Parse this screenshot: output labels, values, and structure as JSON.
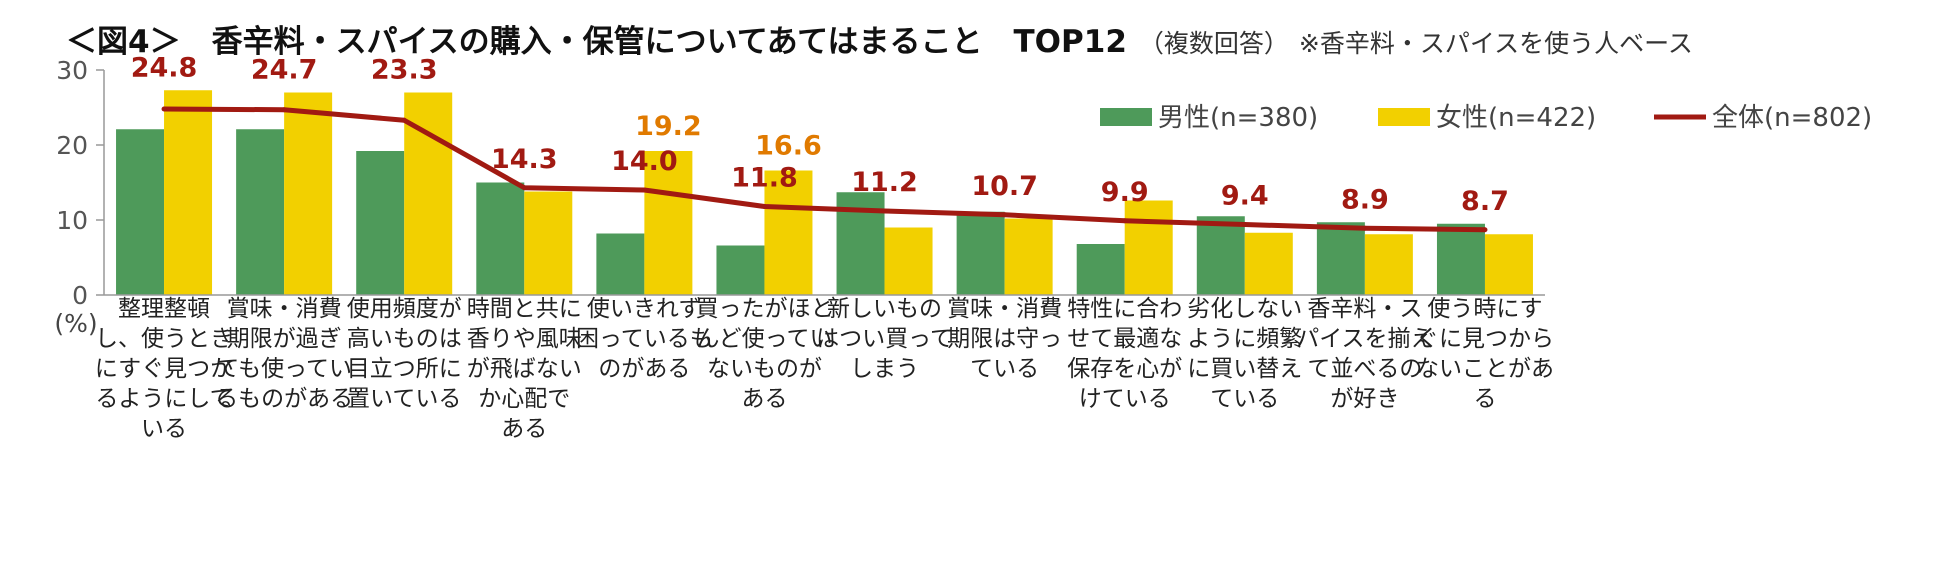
{
  "title": {
    "main": "＜図4＞　香辛料・スパイスの購入・保管についてあてはまること　TOP12",
    "sub1": "（複数回答）",
    "sub2": "※香辛料・スパイスを使う人ベース"
  },
  "chart_data": {
    "type": "bar",
    "title": "香辛料・スパイスの購入・保管についてあてはまること TOP12",
    "ylabel": "(%)",
    "ylim": [
      0,
      30
    ],
    "yticks": [
      0,
      10,
      20,
      30
    ],
    "legend_position": "top-right",
    "categories": [
      [
        "整理整頓",
        "し、使うとき",
        "にすぐ見つか",
        "るようにして",
        "いる"
      ],
      [
        "賞味・消費",
        "期限が過ぎ",
        "ても使ってい",
        "るものがある"
      ],
      [
        "使用頻度が",
        "高いものは",
        "目立つ所に",
        "置いている"
      ],
      [
        "時間と共に",
        "香りや風味",
        "が飛ばない",
        "か心配で",
        "ある"
      ],
      [
        "使いきれず",
        "困っているも",
        "のがある"
      ],
      [
        "買ったがほと",
        "んど使ってい",
        "ないものが",
        "ある"
      ],
      [
        "新しいもの",
        "はつい買って",
        "しまう"
      ],
      [
        "賞味・消費",
        "期限は守っ",
        "ている"
      ],
      [
        "特性に合わ",
        "せて最適な",
        "保存を心が",
        "けている"
      ],
      [
        "劣化しない",
        "ように頻繁",
        "に買い替え",
        "ている"
      ],
      [
        "香辛料・ス",
        "パイスを揃え",
        "て並べるの",
        "が好き"
      ],
      [
        "使う時にす",
        "ぐに見つから",
        "ないことがあ",
        "る"
      ]
    ],
    "series": [
      {
        "name": "男性(n=380)",
        "kind": "bar",
        "color": "#4e9a5a",
        "values": [
          22.1,
          22.1,
          19.2,
          15.0,
          8.2,
          6.6,
          13.7,
          11.1,
          6.8,
          10.5,
          9.7,
          9.5
        ]
      },
      {
        "name": "女性(n=422)",
        "kind": "bar",
        "color": "#f2d000",
        "values": [
          27.3,
          27.0,
          27.0,
          13.8,
          19.2,
          16.6,
          9.0,
          10.2,
          12.6,
          8.3,
          8.1,
          8.1
        ]
      },
      {
        "name": "全体(n=802)",
        "kind": "line",
        "color": "#a11a12",
        "values": [
          24.8,
          24.7,
          23.3,
          14.3,
          14.0,
          11.8,
          11.2,
          10.7,
          9.9,
          9.4,
          8.9,
          8.7
        ],
        "labels": [
          "24.8",
          "24.7",
          "23.3",
          "14.3",
          "14.0",
          "11.8",
          "11.2",
          "10.7",
          "9.9",
          "9.4",
          "8.9",
          "8.7"
        ]
      }
    ],
    "annotations": [
      {
        "category_index": 4,
        "series": "女性(n=422)",
        "text": "19.2",
        "color": "#e07a00"
      },
      {
        "category_index": 5,
        "series": "女性(n=422)",
        "text": "16.6",
        "color": "#e07a00"
      }
    ]
  }
}
